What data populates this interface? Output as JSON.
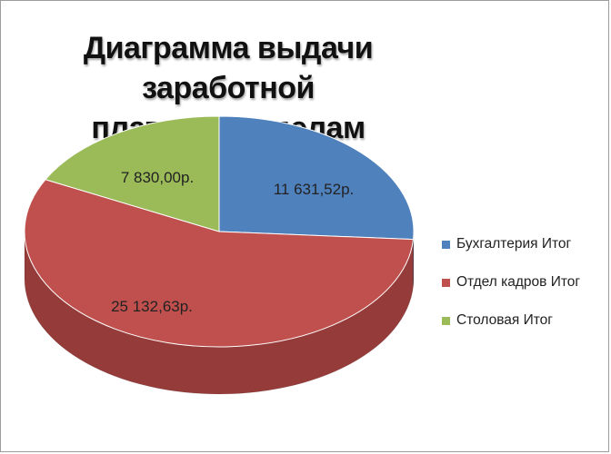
{
  "chart_data": {
    "type": "pie",
    "title": "Диаграмма выдачи заработной платы по отделам",
    "title_lines": [
      "Диаграмма выдачи заработной",
      "платы по отделам"
    ],
    "style": "3d",
    "legend_position": "right",
    "slices": [
      {
        "label": "Бухгалтерия Итог",
        "value": 11631.52,
        "data_label": "11 631,52р.",
        "color": "#4f81bd",
        "side_color": "#3a6190"
      },
      {
        "label": "Отдел кадров Итог",
        "value": 25132.63,
        "data_label": "25 132,63р.",
        "color": "#c0504d",
        "side_color": "#953b39"
      },
      {
        "label": "Столовая Итог",
        "value": 7830.0,
        "data_label": "7 830,00р.",
        "color": "#9bbb59",
        "side_color": "#76923c"
      }
    ]
  }
}
